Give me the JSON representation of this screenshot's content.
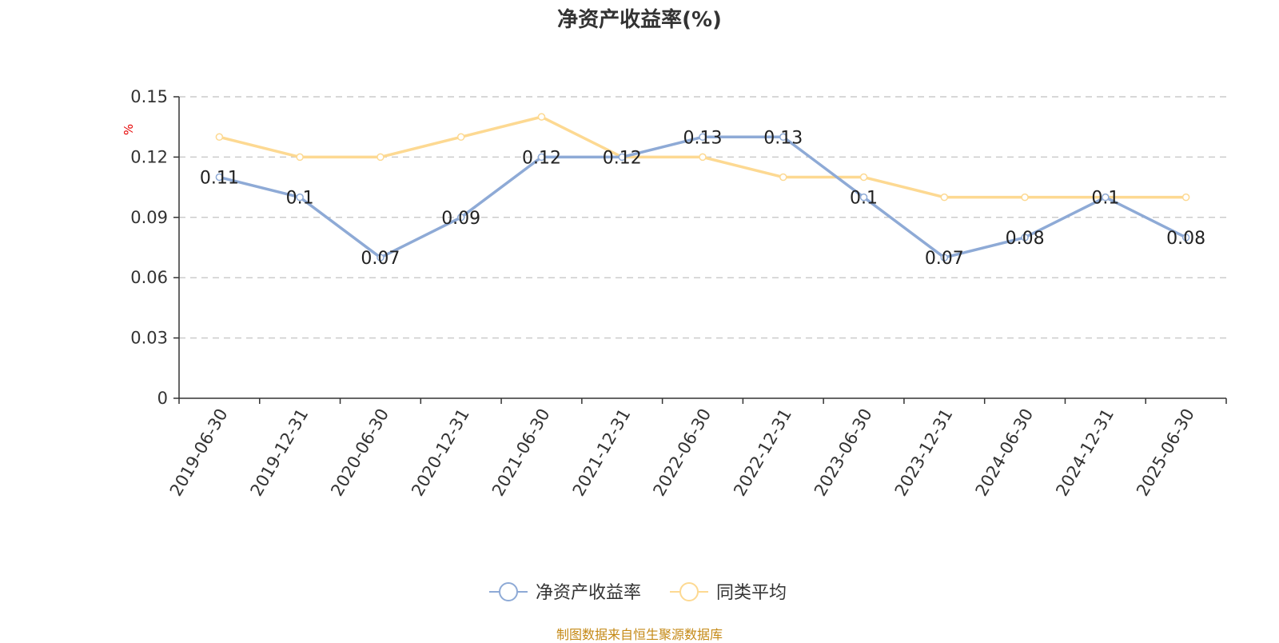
{
  "title": "净资产收益率(%)",
  "source": "制图数据来自恒生聚源数据库",
  "chart_data": {
    "type": "line",
    "title": "净资产收益率(%)",
    "ylabel": "%",
    "ylim": [
      0,
      0.15
    ],
    "yticks": [
      0,
      0.03,
      0.06,
      0.09,
      0.12,
      0.15
    ],
    "grid": true,
    "legend_position": "bottom",
    "categories": [
      "2019-06-30",
      "2019-12-31",
      "2020-06-30",
      "2020-12-31",
      "2021-06-30",
      "2021-12-31",
      "2022-06-30",
      "2022-12-31",
      "2023-06-30",
      "2023-12-31",
      "2024-06-30",
      "2024-12-31",
      "2025-06-30"
    ],
    "series": [
      {
        "name": "净资产收益率",
        "color": "#8eaad6",
        "show_labels": true,
        "values": [
          0.11,
          0.1,
          0.07,
          0.09,
          0.12,
          0.12,
          0.13,
          0.13,
          0.1,
          0.07,
          0.08,
          0.1,
          0.08
        ]
      },
      {
        "name": "同类平均",
        "color": "#fdd992",
        "show_labels": false,
        "values": [
          0.13,
          0.12,
          0.12,
          0.13,
          0.14,
          0.12,
          0.12,
          0.11,
          0.11,
          0.1,
          0.1,
          0.1,
          0.1
        ]
      }
    ]
  }
}
